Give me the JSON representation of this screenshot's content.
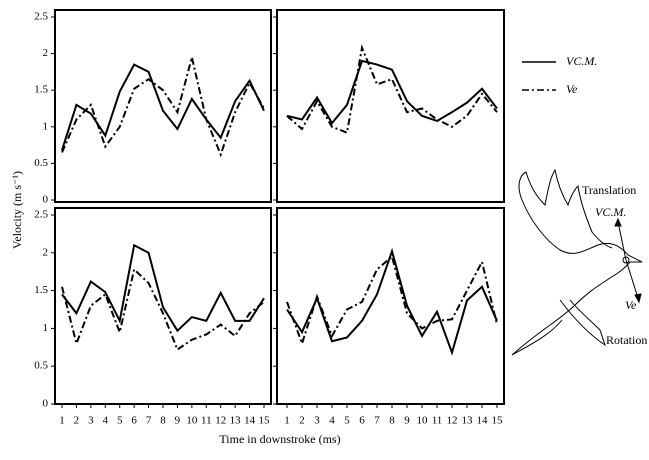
{
  "axis_labels": {
    "x": "Time in downstroke (ms)",
    "y": "Velocity (m s⁻¹)"
  },
  "legend": [
    {
      "name": "VC.M.",
      "dash": "solid"
    },
    {
      "name": "Ve",
      "dash": "dashdot"
    }
  ],
  "diagram": {
    "labels": [
      "Translation",
      "VC.M.",
      "Ve",
      "Rotation"
    ]
  },
  "chart_data": [
    {
      "type": "line",
      "x": [
        1,
        2,
        3,
        4,
        5,
        6,
        7,
        8,
        9,
        10,
        11,
        12,
        13,
        14,
        15
      ],
      "xlim": [
        0.7,
        15.3
      ],
      "ylim": [
        0,
        2.5
      ],
      "yticks": [
        0,
        0.5,
        1,
        1.5,
        2,
        2.5
      ],
      "series": [
        {
          "color": "#000",
          "values": [
            0.68,
            1.3,
            1.18,
            0.88,
            1.48,
            1.85,
            1.75,
            1.22,
            0.97,
            1.38,
            1.1,
            0.85,
            1.35,
            1.63,
            1.22
          ]
        },
        {
          "color": "#000",
          "values": [
            0.65,
            1.1,
            1.3,
            0.73,
            1.0,
            1.52,
            1.65,
            1.5,
            1.2,
            1.95,
            1.1,
            0.62,
            1.2,
            1.6,
            1.25
          ]
        }
      ]
    },
    {
      "type": "line",
      "x": [
        1,
        2,
        3,
        4,
        5,
        6,
        7,
        8,
        9,
        10,
        11,
        12,
        13,
        14,
        15
      ],
      "xlim": [
        0.7,
        15.3
      ],
      "ylim": [
        0,
        2.5
      ],
      "yticks": [
        0,
        0.5,
        1,
        1.5,
        2,
        2.5
      ],
      "series": [
        {
          "color": "#000",
          "values": [
            1.15,
            1.1,
            1.4,
            1.05,
            1.3,
            1.9,
            1.85,
            1.78,
            1.35,
            1.15,
            1.08,
            1.2,
            1.33,
            1.52,
            1.25
          ]
        },
        {
          "color": "#000",
          "values": [
            1.15,
            0.97,
            1.35,
            1.0,
            0.92,
            2.08,
            1.58,
            1.65,
            1.2,
            1.25,
            1.1,
            1.0,
            1.15,
            1.45,
            1.2
          ]
        }
      ]
    },
    {
      "type": "line",
      "x": [
        1,
        2,
        3,
        4,
        5,
        6,
        7,
        8,
        9,
        10,
        11,
        12,
        13,
        14,
        15
      ],
      "xlim": [
        0.7,
        15.3
      ],
      "ylim": [
        0,
        2.5
      ],
      "yticks": [
        0,
        0.5,
        1,
        1.5,
        2,
        2.5
      ],
      "xticks": [
        1,
        2,
        3,
        4,
        5,
        6,
        7,
        8,
        9,
        10,
        11,
        12,
        13,
        14,
        15
      ],
      "series": [
        {
          "color": "#000",
          "values": [
            1.45,
            1.2,
            1.62,
            1.48,
            1.1,
            2.1,
            2.0,
            1.28,
            0.97,
            1.15,
            1.1,
            1.47,
            1.1,
            1.1,
            1.4
          ]
        },
        {
          "color": "#000",
          "values": [
            1.55,
            0.8,
            1.3,
            1.45,
            0.95,
            1.78,
            1.6,
            1.2,
            0.72,
            0.85,
            0.92,
            1.05,
            0.9,
            1.2,
            1.35
          ]
        }
      ]
    },
    {
      "type": "line",
      "x": [
        1,
        2,
        3,
        4,
        5,
        6,
        7,
        8,
        9,
        10,
        11,
        12,
        13,
        14,
        15
      ],
      "xlim": [
        0.7,
        15.3
      ],
      "ylim": [
        0,
        2.5
      ],
      "yticks": [
        0,
        0.5,
        1,
        1.5,
        2,
        2.5
      ],
      "xticks": [
        1,
        2,
        3,
        4,
        5,
        6,
        7,
        8,
        9,
        10,
        11,
        12,
        13,
        14,
        15
      ],
      "series": [
        {
          "color": "#000",
          "values": [
            1.25,
            0.95,
            1.4,
            0.83,
            0.88,
            1.1,
            1.45,
            2.02,
            1.3,
            0.9,
            1.22,
            0.68,
            1.37,
            1.55,
            1.1
          ]
        },
        {
          "color": "#000",
          "values": [
            1.35,
            0.8,
            1.42,
            0.9,
            1.25,
            1.35,
            1.78,
            1.95,
            1.2,
            1.0,
            1.1,
            1.12,
            1.5,
            1.88,
            1.05
          ]
        }
      ]
    }
  ]
}
